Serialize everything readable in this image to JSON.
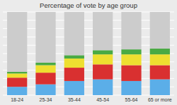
{
  "chart_data": {
    "type": "bar",
    "title": "Percentage of vote by age group",
    "categories": [
      "18-24",
      "25-34",
      "35-44",
      "45-54",
      "55-64",
      "65 or more"
    ],
    "series": [
      {
        "color": "#5baee8",
        "values": [
          10,
          13,
          17,
          19,
          17,
          19
        ]
      },
      {
        "color": "#d93030",
        "values": [
          11,
          14,
          16,
          18,
          19,
          17
        ]
      },
      {
        "color": "#eedf30",
        "values": [
          5,
          9,
          11,
          12,
          13,
          13
        ]
      },
      {
        "color": "#4aaa44",
        "values": [
          2,
          3,
          4,
          5,
          6,
          7
        ]
      },
      {
        "color": "#cccccc",
        "values": [
          72,
          61,
          52,
          46,
          45,
          44
        ]
      }
    ],
    "stacked": true,
    "ylim": [
      0,
      100
    ],
    "yticks": [
      0,
      10,
      20,
      30,
      40,
      50,
      60,
      70,
      80,
      90,
      100
    ],
    "grid": true,
    "tick_labels": "x"
  }
}
